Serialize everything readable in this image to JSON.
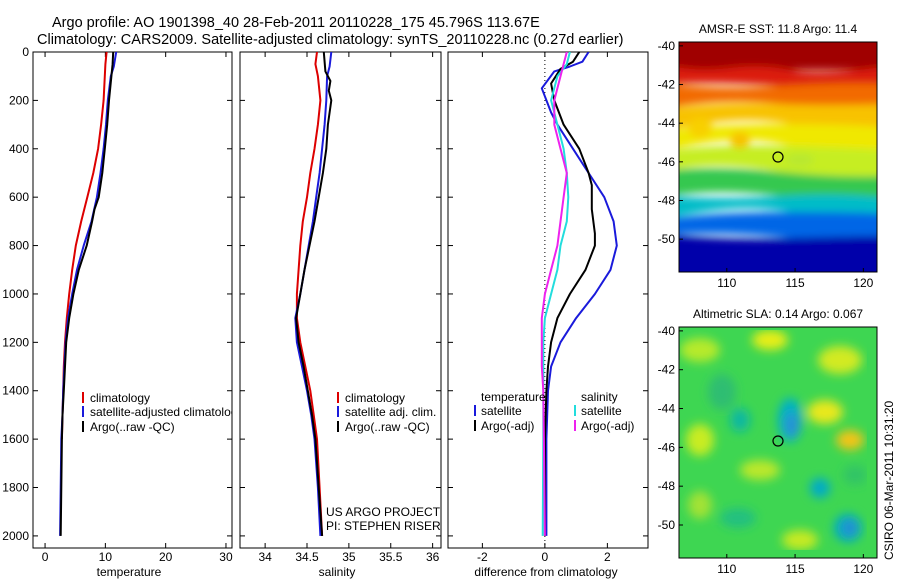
{
  "title": {
    "line1": "Argo profile: AO 1901398_40 28-Feb-2011 20110228_175 45.796S 113.67E",
    "line2": "Climatology: CARS2009. Satellite-adjusted climatology: synTS_20110228.nc (0.27d earlier)"
  },
  "side_text": "CSIRO 06-Mar-2011 10:31:20",
  "project_text": [
    "US ARGO PROJECT",
    "PI: STEPHEN RISER"
  ],
  "colors": {
    "red": "#dd0000",
    "blue": "#1a1adb",
    "black": "#000000",
    "cyan": "#22dddd",
    "magenta": "#ee22ee"
  },
  "chart_data": [
    {
      "type": "line",
      "panel": "temperature",
      "xlabel": "temperature",
      "ylabel": "",
      "xlim": [
        -2,
        31
      ],
      "ylim": [
        2050,
        0
      ],
      "xticks": [
        0,
        10,
        20,
        30
      ],
      "yticks": [
        0,
        200,
        400,
        600,
        800,
        1000,
        1200,
        1400,
        1600,
        1800,
        2000
      ],
      "legend": [
        "climatology",
        "satellite-adjusted climatology",
        "Argo(..raw -QC)"
      ],
      "series": [
        {
          "name": "climatology",
          "color": "red",
          "points": [
            [
              10.2,
              0
            ],
            [
              10.0,
              50
            ],
            [
              9.9,
              100
            ],
            [
              9.7,
              200
            ],
            [
              9.3,
              300
            ],
            [
              8.8,
              400
            ],
            [
              8.0,
              500
            ],
            [
              7.0,
              600
            ],
            [
              6.0,
              700
            ],
            [
              5.1,
              800
            ],
            [
              4.5,
              900
            ],
            [
              4.0,
              1000
            ],
            [
              3.6,
              1100
            ],
            [
              3.3,
              1200
            ],
            [
              3.1,
              1300
            ],
            [
              3.0,
              1400
            ],
            [
              2.9,
              1500
            ],
            [
              2.8,
              1600
            ]
          ]
        },
        {
          "name": "satellite-adjusted climatology",
          "color": "blue",
          "points": [
            [
              11.8,
              0
            ],
            [
              11.4,
              60
            ],
            [
              10.9,
              100
            ],
            [
              10.4,
              200
            ],
            [
              10.1,
              300
            ],
            [
              9.7,
              400
            ],
            [
              9.2,
              500
            ],
            [
              8.6,
              600
            ],
            [
              7.7,
              700
            ],
            [
              6.4,
              800
            ],
            [
              5.3,
              900
            ],
            [
              4.5,
              1000
            ],
            [
              3.8,
              1100
            ],
            [
              3.4,
              1200
            ],
            [
              3.2,
              1300
            ],
            [
              3.0,
              1400
            ],
            [
              2.9,
              1500
            ],
            [
              2.7,
              1600
            ],
            [
              2.6,
              1800
            ],
            [
              2.5,
              2000
            ]
          ]
        },
        {
          "name": "Argo(..raw -QC)",
          "color": "black",
          "points": [
            [
              11.3,
              0
            ],
            [
              11.2,
              50
            ],
            [
              11.0,
              100
            ],
            [
              10.6,
              200
            ],
            [
              10.3,
              300
            ],
            [
              9.9,
              400
            ],
            [
              9.5,
              500
            ],
            [
              8.9,
              600
            ],
            [
              8.2,
              650
            ],
            [
              7.8,
              700
            ],
            [
              6.9,
              800
            ],
            [
              5.6,
              900
            ],
            [
              4.7,
              1000
            ],
            [
              4.0,
              1100
            ],
            [
              3.5,
              1200
            ],
            [
              3.3,
              1300
            ],
            [
              3.1,
              1400
            ],
            [
              2.9,
              1500
            ],
            [
              2.8,
              1600
            ],
            [
              2.7,
              1800
            ],
            [
              2.6,
              2000
            ]
          ]
        }
      ]
    },
    {
      "type": "line",
      "panel": "salinity",
      "xlabel": "salinity",
      "xlim": [
        33.7,
        36.1
      ],
      "ylim": [
        2050,
        0
      ],
      "xticks": [
        34,
        34.5,
        35,
        35.5,
        36
      ],
      "legend": [
        "climatology",
        "satellite adj. clim.",
        "Argo(..raw -QC)"
      ],
      "series": [
        {
          "name": "climatology",
          "color": "red",
          "points": [
            [
              34.62,
              0
            ],
            [
              34.6,
              50
            ],
            [
              34.63,
              100
            ],
            [
              34.66,
              200
            ],
            [
              34.63,
              300
            ],
            [
              34.59,
              400
            ],
            [
              34.54,
              500
            ],
            [
              34.5,
              600
            ],
            [
              34.45,
              700
            ],
            [
              34.42,
              800
            ],
            [
              34.4,
              900
            ],
            [
              34.38,
              1000
            ],
            [
              34.38,
              1100
            ],
            [
              34.42,
              1200
            ],
            [
              34.48,
              1300
            ],
            [
              34.54,
              1400
            ],
            [
              34.58,
              1500
            ],
            [
              34.62,
              1600
            ],
            [
              34.65,
              1800
            ],
            [
              34.68,
              2000
            ]
          ]
        },
        {
          "name": "satellite adj. clim.",
          "color": "blue",
          "points": [
            [
              34.79,
              0
            ],
            [
              34.77,
              60
            ],
            [
              34.74,
              100
            ],
            [
              34.73,
              200
            ],
            [
              34.71,
              300
            ],
            [
              34.68,
              400
            ],
            [
              34.65,
              500
            ],
            [
              34.61,
              600
            ],
            [
              34.57,
              700
            ],
            [
              34.52,
              800
            ],
            [
              34.47,
              900
            ],
            [
              34.42,
              1000
            ],
            [
              34.36,
              1100
            ],
            [
              34.38,
              1200
            ],
            [
              34.44,
              1300
            ],
            [
              34.5,
              1400
            ],
            [
              34.55,
              1500
            ],
            [
              34.59,
              1600
            ],
            [
              34.63,
              1800
            ],
            [
              34.66,
              2000
            ]
          ]
        },
        {
          "name": "Argo(..raw -QC)",
          "color": "black",
          "points": [
            [
              34.7,
              0
            ],
            [
              34.72,
              80
            ],
            [
              34.78,
              120
            ],
            [
              34.76,
              160
            ],
            [
              34.79,
              200
            ],
            [
              34.77,
              250
            ],
            [
              34.75,
              300
            ],
            [
              34.73,
              400
            ],
            [
              34.69,
              500
            ],
            [
              34.64,
              600
            ],
            [
              34.59,
              700
            ],
            [
              34.53,
              800
            ],
            [
              34.47,
              900
            ],
            [
              34.42,
              1000
            ],
            [
              34.37,
              1100
            ],
            [
              34.4,
              1200
            ],
            [
              34.46,
              1300
            ],
            [
              34.51,
              1400
            ],
            [
              34.56,
              1500
            ],
            [
              34.6,
              1600
            ],
            [
              34.64,
              1800
            ],
            [
              34.68,
              2000
            ]
          ]
        }
      ]
    },
    {
      "type": "line",
      "panel": "difference",
      "xlabel": "difference from climatology",
      "xlim": [
        -3.1,
        3.3
      ],
      "ylim": [
        2050,
        0
      ],
      "xticks": [
        -2,
        0,
        2
      ],
      "legend_headers": [
        "temperature",
        "salinity"
      ],
      "legend": [
        "satellite",
        "Argo(-adj)",
        "satellite",
        "Argo(-adj)"
      ],
      "series": [
        {
          "name": "satellite",
          "group": "temperature",
          "color": "blue",
          "points": [
            [
              1.4,
              0
            ],
            [
              1.2,
              40
            ],
            [
              0.8,
              60
            ],
            [
              0.3,
              80
            ],
            [
              -0.1,
              150
            ],
            [
              0.2,
              250
            ],
            [
              0.4,
              300
            ],
            [
              0.9,
              400
            ],
            [
              1.4,
              500
            ],
            [
              1.9,
              600
            ],
            [
              2.2,
              700
            ],
            [
              2.3,
              800
            ],
            [
              2.1,
              900
            ],
            [
              1.6,
              1000
            ],
            [
              1.0,
              1100
            ],
            [
              0.5,
              1200
            ],
            [
              0.2,
              1300
            ],
            [
              0.1,
              1400
            ],
            [
              0.05,
              1600
            ],
            [
              0.05,
              2000
            ]
          ]
        },
        {
          "name": "Argo(-adj)",
          "group": "temperature",
          "color": "black",
          "points": [
            [
              1.1,
              0
            ],
            [
              0.9,
              40
            ],
            [
              0.5,
              70
            ],
            [
              0.2,
              130
            ],
            [
              0.3,
              200
            ],
            [
              0.6,
              300
            ],
            [
              1.1,
              400
            ],
            [
              1.4,
              500
            ],
            [
              1.5,
              550
            ],
            [
              1.5,
              650
            ],
            [
              1.6,
              750
            ],
            [
              1.6,
              800
            ],
            [
              1.3,
              900
            ],
            [
              0.8,
              1000
            ],
            [
              0.4,
              1100
            ],
            [
              0.2,
              1200
            ],
            [
              0.1,
              1300
            ],
            [
              0.05,
              1400
            ],
            [
              0.0,
              1600
            ],
            [
              0.0,
              2000
            ]
          ]
        },
        {
          "name": "satellite",
          "group": "salinity",
          "color": "cyan",
          "points": [
            [
              0.8,
              0
            ],
            [
              0.7,
              50
            ],
            [
              0.4,
              100
            ],
            [
              0.2,
              200
            ],
            [
              0.4,
              300
            ],
            [
              0.6,
              400
            ],
            [
              0.7,
              500
            ],
            [
              0.75,
              600
            ],
            [
              0.7,
              700
            ],
            [
              0.5,
              800
            ],
            [
              0.4,
              900
            ],
            [
              0.2,
              1000
            ],
            [
              0.0,
              1100
            ],
            [
              -0.05,
              1200
            ],
            [
              -0.05,
              1400
            ],
            [
              -0.05,
              1600
            ],
            [
              -0.07,
              2000
            ]
          ]
        },
        {
          "name": "Argo(-adj)",
          "group": "salinity",
          "color": "magenta",
          "points": [
            [
              0.7,
              0
            ],
            [
              0.6,
              50
            ],
            [
              0.5,
              100
            ],
            [
              0.4,
              150
            ],
            [
              0.3,
              200
            ],
            [
              0.3,
              300
            ],
            [
              0.5,
              400
            ],
            [
              0.7,
              500
            ],
            [
              0.6,
              600
            ],
            [
              0.5,
              700
            ],
            [
              0.4,
              800
            ],
            [
              0.2,
              900
            ],
            [
              0.0,
              1000
            ],
            [
              -0.1,
              1100
            ],
            [
              -0.1,
              1200
            ],
            [
              -0.1,
              1300
            ],
            [
              -0.05,
              1400
            ],
            [
              -0.03,
              1600
            ],
            [
              0.0,
              2000
            ]
          ]
        }
      ],
      "zero_line": 0
    },
    {
      "type": "heatmap",
      "panel": "sst",
      "title": "AMSR-E SST: 11.8 Argo: 11.4",
      "xlim": [
        106.5,
        121
      ],
      "ylim": [
        -51.7,
        -39.8
      ],
      "xticks": [
        110,
        115,
        120
      ],
      "yticks": [
        -40,
        -42,
        -44,
        -46,
        -48,
        -50
      ],
      "marker": [
        113.67,
        -45.8
      ]
    },
    {
      "type": "heatmap",
      "panel": "sla",
      "title": "Altimetric SLA: 0.14 Argo: 0.067",
      "xlim": [
        106.5,
        121
      ],
      "ylim": [
        -51.7,
        -39.8
      ],
      "xticks": [
        110,
        115,
        120
      ],
      "yticks": [
        -40,
        -42,
        -44,
        -46,
        -48,
        -50
      ],
      "marker": [
        113.67,
        -45.8
      ]
    }
  ]
}
